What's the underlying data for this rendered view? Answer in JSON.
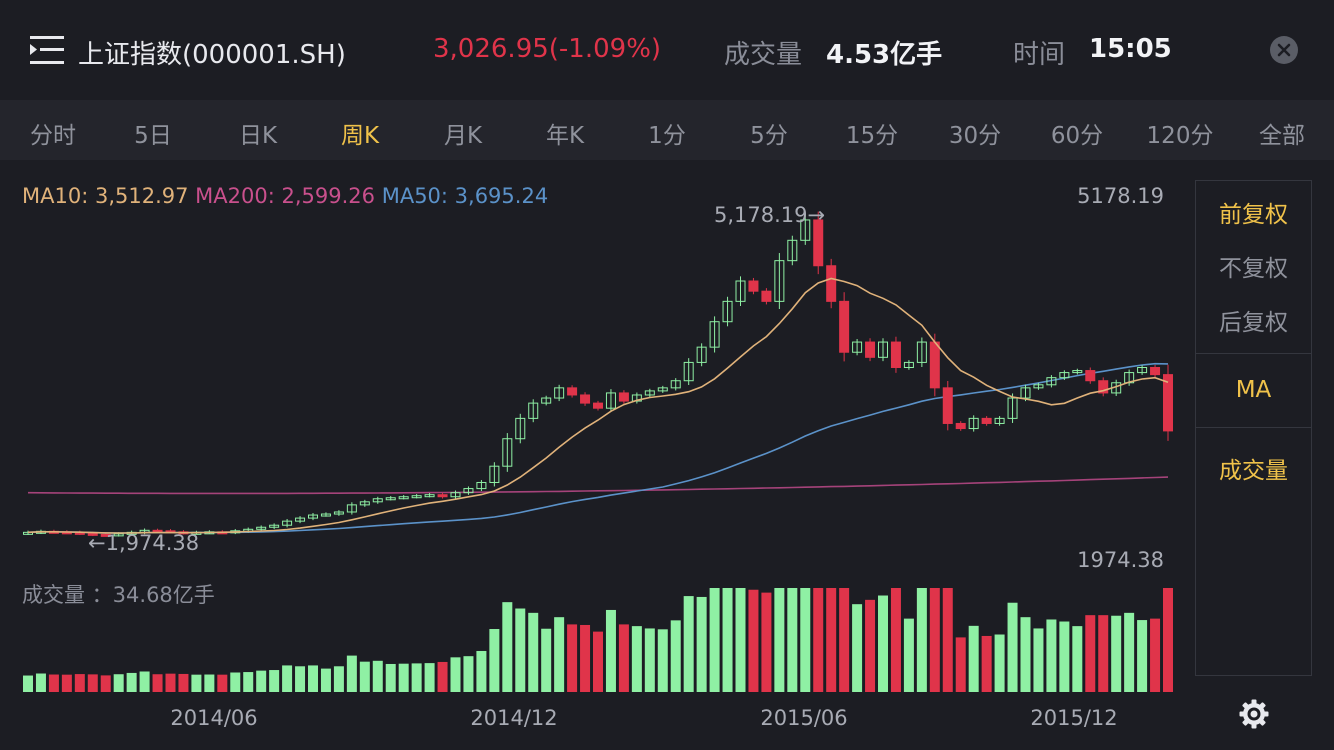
{
  "header": {
    "title": "上证指数(000001.SH)",
    "price": "3,026.95(-1.09%)",
    "volume_label": "成交量",
    "volume_value": "4.53亿手",
    "time_label": "时间",
    "time_value": "15:05",
    "menu_icon": "menu-icon",
    "close_icon": "close-icon"
  },
  "tabs": [
    {
      "label": "分时"
    },
    {
      "label": "5日"
    },
    {
      "label": "日K"
    },
    {
      "label": "周K"
    },
    {
      "label": "月K"
    },
    {
      "label": "年K"
    },
    {
      "label": "1分"
    },
    {
      "label": "5分"
    },
    {
      "label": "15分"
    },
    {
      "label": "30分"
    },
    {
      "label": "60分"
    },
    {
      "label": "120分"
    },
    {
      "label": "全部"
    }
  ],
  "active_tab": "周K",
  "legend": {
    "ma10": "MA10: 3,512.97",
    "ma200": "MA200: 2,599.26",
    "ma50": "MA50: 3,695.24"
  },
  "price_axis": {
    "max_label": "5178.19",
    "min_label": "1974.38"
  },
  "annotations": {
    "high": "5,178.19→",
    "low": "←1,974.38"
  },
  "volume_legend": "成交量 ：34.68亿手",
  "dates": [
    "2014/06",
    "2014/12",
    "2015/06",
    "2015/12"
  ],
  "side_panel": {
    "items": [
      "前复权",
      "不复权",
      "后复权",
      "MA",
      "成交量"
    ],
    "active": [
      "前复权",
      "MA",
      "成交量"
    ],
    "settings_icon": "gear-icon"
  },
  "colors": {
    "up": "#8ff0a4",
    "down": "#e0344a",
    "ma10": "#e0b27a",
    "ma50": "#5b92c9",
    "ma200": "#a5437a",
    "accent": "#f0c24a"
  },
  "chart_data": {
    "type": "candlestick",
    "period": "weekly",
    "y_range": [
      1974.38,
      5178.19
    ],
    "high": 5178.19,
    "low": 1974.38,
    "x_ticks": [
      "2014/06",
      "2014/12",
      "2015/06",
      "2015/12"
    ],
    "closes": [
      2030,
      2040,
      2035,
      2030,
      2020,
      2010,
      2005,
      2015,
      2030,
      2050,
      2045,
      2035,
      2025,
      2030,
      2035,
      2030,
      2045,
      2060,
      2080,
      2100,
      2140,
      2170,
      2200,
      2210,
      2230,
      2300,
      2330,
      2360,
      2370,
      2380,
      2390,
      2400,
      2380,
      2420,
      2460,
      2520,
      2680,
      2950,
      3150,
      3300,
      3350,
      3450,
      3380,
      3300,
      3250,
      3400,
      3320,
      3380,
      3420,
      3450,
      3520,
      3700,
      3850,
      4100,
      4300,
      4500,
      4400,
      4300,
      4700,
      4900,
      5100,
      4650,
      4300,
      3800,
      3900,
      3750,
      3900,
      3650,
      3700,
      3900,
      3450,
      3100,
      3050,
      3150,
      3100,
      3150,
      3350,
      3450,
      3480,
      3550,
      3600,
      3620,
      3520,
      3400,
      3500,
      3600,
      3650,
      3580,
      3026.95
    ],
    "ma10_last": 3512.97,
    "ma50_last": 3695.24,
    "ma200_last": 2599.26,
    "volume_last": "34.68亿手"
  }
}
